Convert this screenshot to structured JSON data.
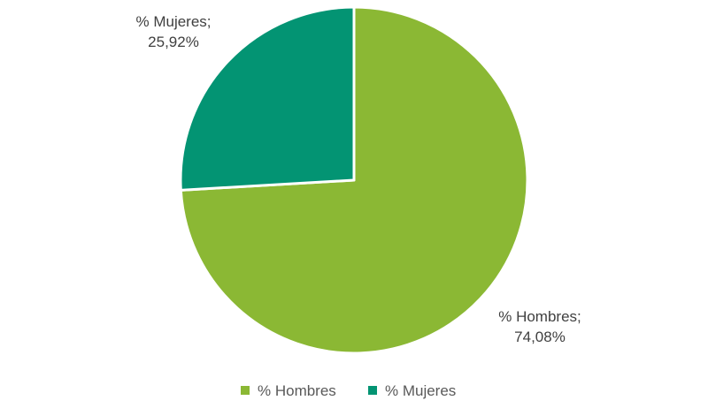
{
  "chart_data": {
    "type": "pie",
    "categories": [
      "% Hombres",
      "% Mujeres"
    ],
    "values": [
      74.08,
      25.92
    ],
    "data_labels": [
      [
        "% Hombres;",
        "74,08%"
      ],
      [
        "% Mujeres;",
        "25,92%"
      ]
    ],
    "colors": [
      "#8BB834",
      "#039473"
    ],
    "start": "top",
    "direction": "clockwise",
    "legend": {
      "position": "bottom",
      "entries": [
        "% Hombres",
        "% Mujeres"
      ]
    }
  }
}
